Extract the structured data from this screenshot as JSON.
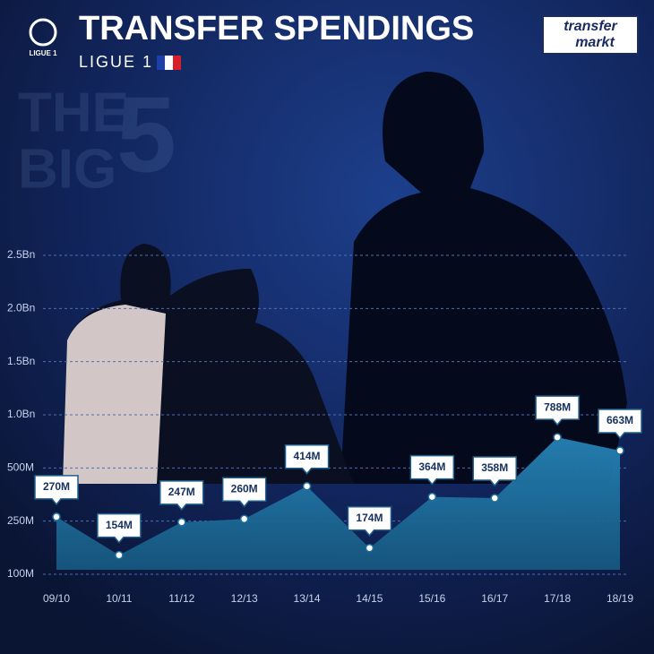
{
  "chart_data": {
    "type": "area",
    "title": "TRANSFER SPENDINGS",
    "subtitle": "LIGUE 1",
    "watermark": [
      "THE",
      "BIG",
      "5"
    ],
    "league_logo": "LIGUE 1",
    "source_logo": [
      "transfer",
      "markt"
    ],
    "categories": [
      "09/10",
      "10/11",
      "11/12",
      "12/13",
      "13/14",
      "14/15",
      "15/16",
      "16/17",
      "17/18",
      "18/19"
    ],
    "values": [
      270,
      154,
      247,
      260,
      414,
      174,
      364,
      358,
      788,
      663
    ],
    "value_labels": [
      "270M",
      "154M",
      "247M",
      "260M",
      "414M",
      "174M",
      "364M",
      "358M",
      "788M",
      "663M"
    ],
    "color": "#1f6f9e",
    "ylim": [
      100,
      2500
    ],
    "yticks": [
      {
        "value": 100,
        "label": "100M"
      },
      {
        "value": 250,
        "label": "250M"
      },
      {
        "value": 500,
        "label": "500M"
      },
      {
        "value": 1000,
        "label": "1.0Bn"
      },
      {
        "value": 1500,
        "label": "1.5Bn"
      },
      {
        "value": 2000,
        "label": "2.0Bn"
      },
      {
        "value": 2500,
        "label": "2.5Bn"
      }
    ],
    "grid": true
  }
}
